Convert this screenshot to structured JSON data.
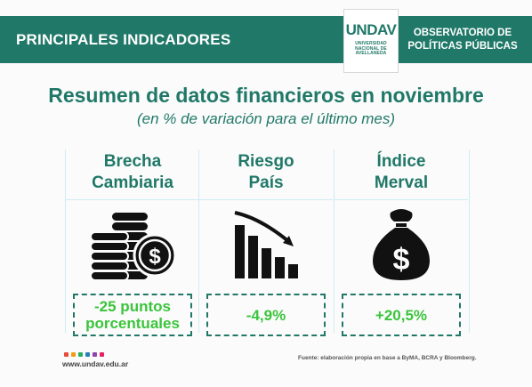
{
  "header": {
    "section_title": "PRINCIPALES INDICADORES",
    "logo": {
      "wordmark": "UNDAV",
      "line1": "UNIVERSIDAD",
      "line2": "NACIONAL DE",
      "line3": "AVELLANEDA"
    },
    "org_line1": "OBSERVATORIO DE",
    "org_line2": "POLÍTICAS PÚBLICAS"
  },
  "title": "Resumen de datos financieros en noviembre",
  "subtitle": "(en % de variación para el último mes)",
  "indicators": [
    {
      "label_line1": "Brecha",
      "label_line2": "Cambiaria",
      "icon": "coins-dollar-icon",
      "value": "-25 puntos porcentuales"
    },
    {
      "label_line1": "Riesgo",
      "label_line2": "País",
      "icon": "declining-bar-chart-icon",
      "value": "-4,9%"
    },
    {
      "label_line1": "Índice",
      "label_line2": "Merval",
      "icon": "money-bag-icon",
      "value": "+20,5%"
    }
  ],
  "footer": {
    "url": "www.undav.edu.ar",
    "source": "Fuente: elaboración propia en base a ByMA, BCRA y Bloomberg.",
    "dot_colors": [
      "#e84c3d",
      "#f39c12",
      "#27ae60",
      "#2980b9",
      "#8e44ad",
      "#e91e63"
    ]
  },
  "colors": {
    "primary": "#207868",
    "value_green": "#3bc43b"
  }
}
